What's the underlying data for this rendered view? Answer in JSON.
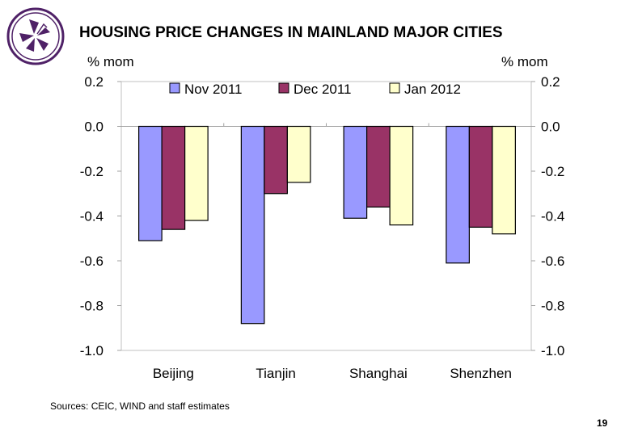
{
  "title": "HOUSING PRICE CHANGES IN MAINLAND MAJOR CITIES",
  "source": "Sources: CEIC, WIND and staff estimates",
  "page_number": "19",
  "logo": {
    "icon": "bauhinia-flower-icon",
    "color": "#4f2167"
  },
  "chart_data": {
    "type": "bar",
    "categories": [
      "Beijing",
      "Tianjin",
      "Shanghai",
      "Shenzhen"
    ],
    "series": [
      {
        "name": "Nov 2011",
        "color": "#9999ff",
        "values": [
          -0.51,
          -0.88,
          -0.41,
          -0.61
        ]
      },
      {
        "name": "Dec 2011",
        "color": "#993366",
        "values": [
          -0.46,
          -0.3,
          -0.36,
          -0.45
        ]
      },
      {
        "name": "Jan 2012",
        "color": "#ffffcc",
        "values": [
          -0.42,
          -0.25,
          -0.44,
          -0.48
        ]
      }
    ],
    "ylabel_left": "% mom",
    "ylabel_right": "% mom",
    "ylim": [
      -1.0,
      0.2
    ],
    "yticks": [
      "0.2",
      "0.0",
      "-0.2",
      "-0.4",
      "-0.6",
      "-0.8",
      "-1.0"
    ],
    "legend_position": "top",
    "grid": false
  }
}
